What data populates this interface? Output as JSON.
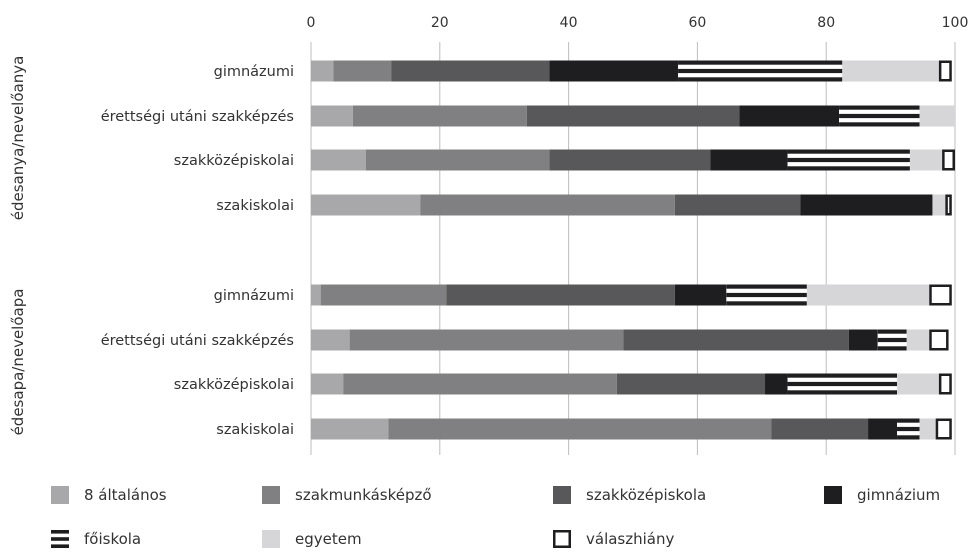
{
  "chart_data": {
    "type": "bar",
    "orientation": "horizontal",
    "stacked": true,
    "xlim": [
      0,
      100
    ],
    "xticks": [
      "0",
      "20",
      "40",
      "60",
      "80",
      "100"
    ],
    "grid": true,
    "legend_position": "bottom",
    "groups": [
      {
        "label": "édesanya/nevelőanya",
        "categories": [
          "gimnázumi",
          "érettségi utáni szakképzés",
          "szakközépiskolai",
          "szakiskolai"
        ]
      },
      {
        "label": "édesapa/nevelőapa",
        "categories": [
          "gimnázumi",
          "érettségi utáni szakképzés",
          "szakközépiskolai",
          "szakiskolai"
        ]
      }
    ],
    "series": [
      {
        "name": "8 általános",
        "color": "#a8a8aa",
        "pattern": "solid",
        "values": [
          [
            3.5,
            6.5,
            8.5,
            17
          ],
          [
            1.5,
            6,
            5,
            12
          ]
        ]
      },
      {
        "name": "szakmunkásképző",
        "color": "#808082",
        "pattern": "solid",
        "values": [
          [
            9,
            27,
            28.5,
            39.5
          ],
          [
            19.5,
            42.5,
            42.5,
            59.5
          ]
        ]
      },
      {
        "name": "szakközépiskola",
        "color": "#58585a",
        "pattern": "solid",
        "values": [
          [
            24.5,
            33,
            25,
            19.5
          ],
          [
            35.5,
            35,
            23,
            15
          ]
        ]
      },
      {
        "name": "gimnázium",
        "color": "#1e1e20",
        "pattern": "solid",
        "values": [
          [
            20,
            15.5,
            12,
            20.5
          ],
          [
            8,
            4.5,
            3.5,
            4.5
          ]
        ]
      },
      {
        "name": "főiskola",
        "color": "#1e1e20",
        "pattern": "striped",
        "values": [
          [
            25.5,
            12.5,
            19,
            0
          ],
          [
            12.5,
            4.5,
            17,
            3.5
          ]
        ]
      },
      {
        "name": "egyetem",
        "color": "#d6d6d8",
        "pattern": "solid",
        "values": [
          [
            15,
            5.5,
            5,
            2
          ],
          [
            19,
            3.5,
            6.5,
            2.5
          ]
        ]
      },
      {
        "name": "válaszhiány",
        "color": "#ffffff",
        "pattern": "outline",
        "values": [
          [
            2,
            0,
            2,
            1
          ],
          [
            3.5,
            3,
            2,
            2.5
          ]
        ]
      }
    ]
  }
}
